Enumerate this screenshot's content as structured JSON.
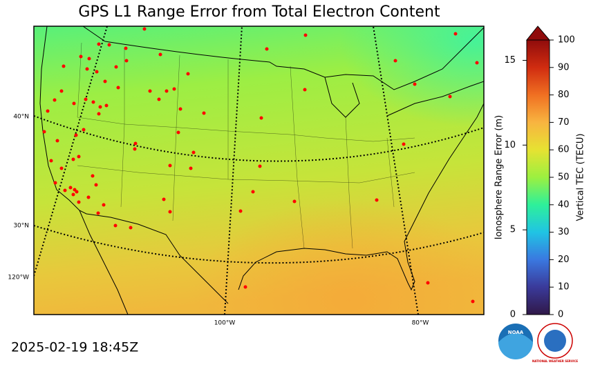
{
  "title": "GPS L1 Range Error from Total Electron Content",
  "timestamp": "2025-02-19 18:45Z",
  "map": {
    "lat_labels": [
      "40°N",
      "30°N"
    ],
    "lon_labels": [
      "120°W",
      "100°W",
      "80°W"
    ]
  },
  "colorbar": {
    "left_label": "Ionosphere Range Error (m)",
    "right_label": "Vertical TEC (TECU)",
    "left_lim": [
      0,
      16.2
    ],
    "left_ticks": [
      0,
      5,
      10,
      15
    ],
    "right_lim": [
      0,
      100
    ],
    "right_ticks": [
      0,
      10,
      20,
      30,
      40,
      50,
      60,
      70,
      80,
      90,
      100
    ]
  },
  "logos": {
    "noaa": "NOAA",
    "nws": "NATIONAL WEATHER SERVICE"
  }
}
